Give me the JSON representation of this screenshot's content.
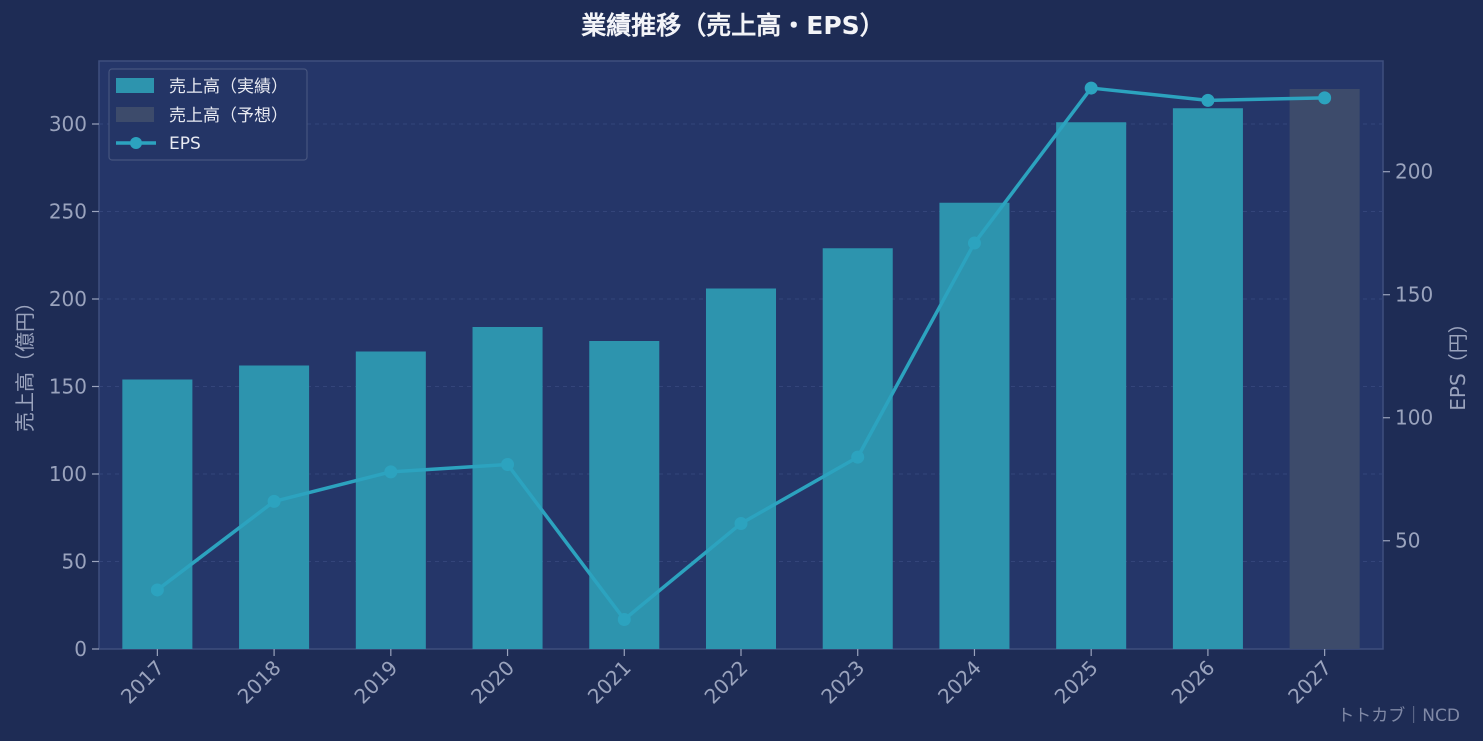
{
  "chart_data": {
    "type": "bar",
    "title": "業績推移（売上高・EPS）",
    "categories": [
      "2017",
      "2018",
      "2019",
      "2020",
      "2021",
      "2022",
      "2023",
      "2024",
      "2025",
      "2026",
      "2027"
    ],
    "series": [
      {
        "name": "売上高（実績）",
        "type": "bar",
        "axis": "left",
        "color": "#2d94ae",
        "values": [
          154,
          162,
          170,
          184,
          176,
          206,
          229,
          255,
          301,
          309,
          null
        ]
      },
      {
        "name": "売上高（予想）",
        "type": "bar",
        "axis": "left",
        "color": "#3d4b6b",
        "values": [
          null,
          null,
          null,
          null,
          null,
          null,
          null,
          null,
          null,
          null,
          320
        ]
      },
      {
        "name": "EPS",
        "type": "line",
        "axis": "right",
        "color": "#2ca3bf",
        "values": [
          30,
          66,
          78,
          81,
          18,
          57,
          84,
          171,
          234,
          229,
          230
        ]
      }
    ],
    "ylabel": "売上高（億円）",
    "y2label": "EPS（円）",
    "ylim": [
      0,
      336
    ],
    "y2lim": [
      6,
      245
    ],
    "yticks": [
      0,
      50,
      100,
      150,
      200,
      250,
      300
    ],
    "y2ticks": [
      50,
      100,
      150,
      200
    ],
    "grid": true,
    "legend": "top-left",
    "colors": {
      "background": "#1e2c55",
      "plot_area": "#253669",
      "text": "#9aa3bd",
      "title": "#f3f4f8"
    }
  },
  "watermark": "トトカブ｜NCD"
}
